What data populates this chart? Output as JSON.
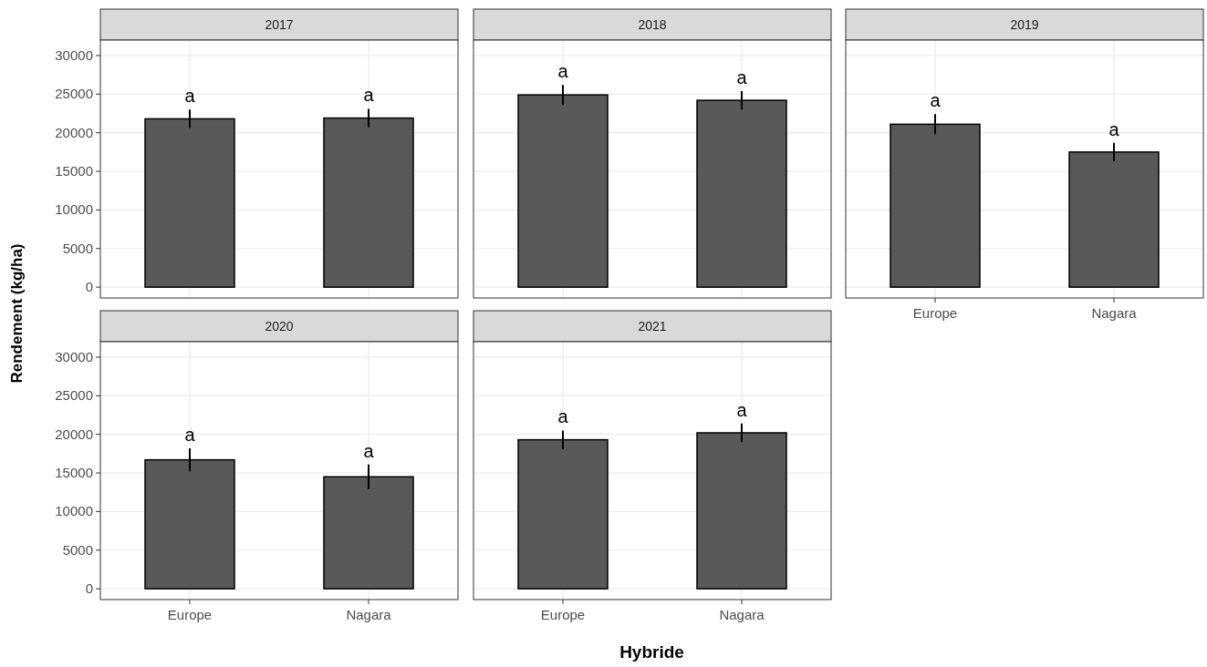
{
  "chart_data": [
    {
      "type": "bar",
      "title": "2017",
      "ylabel": "Rendement (kg/ha)",
      "categories": [
        "Europe",
        "Nagara"
      ],
      "values": [
        21800,
        21900
      ],
      "errors": [
        1200,
        1200
      ],
      "color": "#595959",
      "ylim": [
        -1400,
        32000
      ],
      "yticks": [
        0,
        5000,
        10000,
        15000,
        20000,
        25000,
        30000
      ],
      "grid": true,
      "tick_labels": "y",
      "annotations": [
        {
          "text": "a",
          "x": "Europe",
          "y": 23000
        },
        {
          "text": "a",
          "x": "Nagara",
          "y": 23100
        }
      ]
    },
    {
      "type": "bar",
      "title": "2018",
      "categories": [
        "Europe",
        "Nagara"
      ],
      "values": [
        24900,
        24200
      ],
      "errors": [
        1300,
        1200
      ],
      "color": "#595959",
      "ylim": [
        -1400,
        32000
      ],
      "yticks": [
        0,
        5000,
        10000,
        15000,
        20000,
        25000,
        30000
      ],
      "grid": true,
      "tick_labels": false,
      "annotations": [
        {
          "text": "a",
          "x": "Europe",
          "y": 26200
        },
        {
          "text": "a",
          "x": "Nagara",
          "y": 25400
        }
      ]
    },
    {
      "type": "bar",
      "title": "2019",
      "categories": [
        "Europe",
        "Nagara"
      ],
      "values": [
        21100,
        17500
      ],
      "errors": [
        1300,
        1200
      ],
      "color": "#595959",
      "ylim": [
        -1400,
        32000
      ],
      "yticks": [
        0,
        5000,
        10000,
        15000,
        20000,
        25000,
        30000
      ],
      "grid": true,
      "tick_labels": "x",
      "annotations": [
        {
          "text": "a",
          "x": "Europe",
          "y": 22400
        },
        {
          "text": "a",
          "x": "Nagara",
          "y": 18700
        }
      ]
    },
    {
      "type": "bar",
      "title": "2020",
      "categories": [
        "Europe",
        "Nagara"
      ],
      "values": [
        16700,
        14500
      ],
      "errors": [
        1500,
        1600
      ],
      "color": "#595959",
      "ylim": [
        -1400,
        32000
      ],
      "yticks": [
        0,
        5000,
        10000,
        15000,
        20000,
        25000,
        30000
      ],
      "grid": true,
      "annotations": [
        {
          "text": "a",
          "x": "Europe",
          "y": 18200
        },
        {
          "text": "a",
          "x": "Nagara",
          "y": 16100
        }
      ]
    },
    {
      "type": "bar",
      "title": "2021",
      "xlabel": "Hybride",
      "categories": [
        "Europe",
        "Nagara"
      ],
      "values": [
        19300,
        20200
      ],
      "errors": [
        1200,
        1200
      ],
      "color": "#595959",
      "ylim": [
        -1400,
        32000
      ],
      "yticks": [
        0,
        5000,
        10000,
        15000,
        20000,
        25000,
        30000
      ],
      "grid": true,
      "tick_labels": "x",
      "annotations": [
        {
          "text": "a",
          "x": "Europe",
          "y": 20500
        },
        {
          "text": "a",
          "x": "Nagara",
          "y": 21400
        }
      ]
    }
  ]
}
